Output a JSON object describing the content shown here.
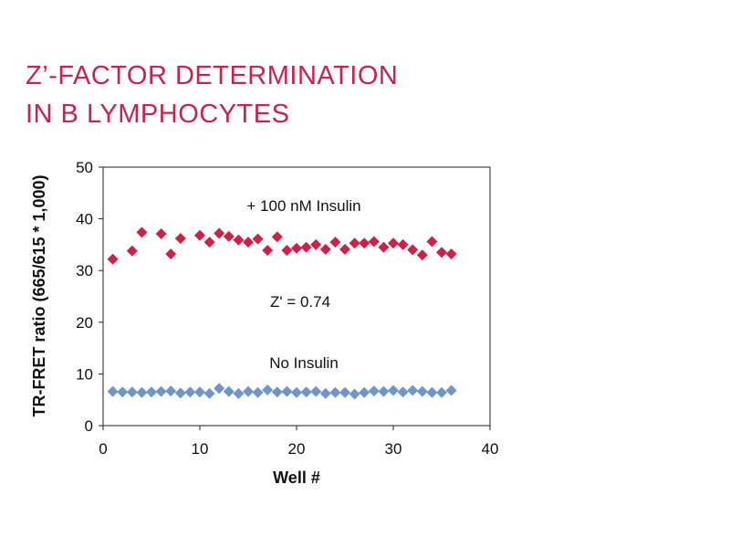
{
  "title": {
    "line1": "Z’-FACTOR DETERMINATION",
    "line2": "IN B LYMPHOCYTES"
  },
  "chart_data": {
    "type": "scatter",
    "title": "Z’-FACTOR DETERMINATION IN B LYMPHOCYTES",
    "xlabel": "Well #",
    "ylabel": "TR-FRET ratio (665/615 * 1,000)",
    "xlim": [
      0,
      40
    ],
    "ylim": [
      0,
      50
    ],
    "xticks": [
      0,
      10,
      20,
      30,
      40
    ],
    "yticks": [
      0,
      10,
      20,
      30,
      40,
      50
    ],
    "annotations": {
      "insulin": "+ 100 nM Insulin",
      "zprime": "Z' = 0.74",
      "noinsulin": "No Insulin"
    },
    "series": [
      {
        "name": "+ 100 nM Insulin",
        "color": "#d21f45",
        "x": [
          1,
          2,
          3,
          4,
          5,
          6,
          7,
          8,
          9,
          10,
          11,
          12,
          13,
          14,
          15,
          16,
          17,
          18,
          19,
          20,
          21,
          22,
          23,
          24,
          25,
          26,
          27,
          28,
          29,
          30,
          31,
          32,
          33,
          34,
          35,
          36
        ],
        "y": [
          32.2,
          null,
          33.8,
          37.4,
          null,
          37.1,
          33.2,
          36.2,
          null,
          36.8,
          35.5,
          37.2,
          36.6,
          35.9,
          35.5,
          36.1,
          33.9,
          36.5,
          33.9,
          34.3,
          34.5,
          35.0,
          34.1,
          35.5,
          34.1,
          35.3,
          35.3,
          35.6,
          34.5,
          35.3,
          35.0,
          34.0,
          33.0,
          35.6,
          33.5,
          33.2
        ]
      },
      {
        "name": "No Insulin",
        "color": "#6f96cc",
        "x": [
          1,
          2,
          3,
          4,
          5,
          6,
          7,
          8,
          9,
          10,
          11,
          12,
          13,
          14,
          15,
          16,
          17,
          18,
          19,
          20,
          21,
          22,
          23,
          24,
          25,
          26,
          27,
          28,
          29,
          30,
          31,
          32,
          33,
          34,
          35,
          36
        ],
        "y": [
          6.6,
          6.5,
          6.5,
          6.4,
          6.5,
          6.6,
          6.7,
          6.3,
          6.5,
          6.5,
          6.2,
          7.2,
          6.6,
          6.2,
          6.6,
          6.4,
          6.9,
          6.5,
          6.6,
          6.4,
          6.5,
          6.6,
          6.2,
          6.4,
          6.4,
          6.1,
          6.4,
          6.7,
          6.6,
          6.8,
          6.5,
          6.8,
          6.6,
          6.4,
          6.4,
          6.8
        ]
      }
    ]
  }
}
